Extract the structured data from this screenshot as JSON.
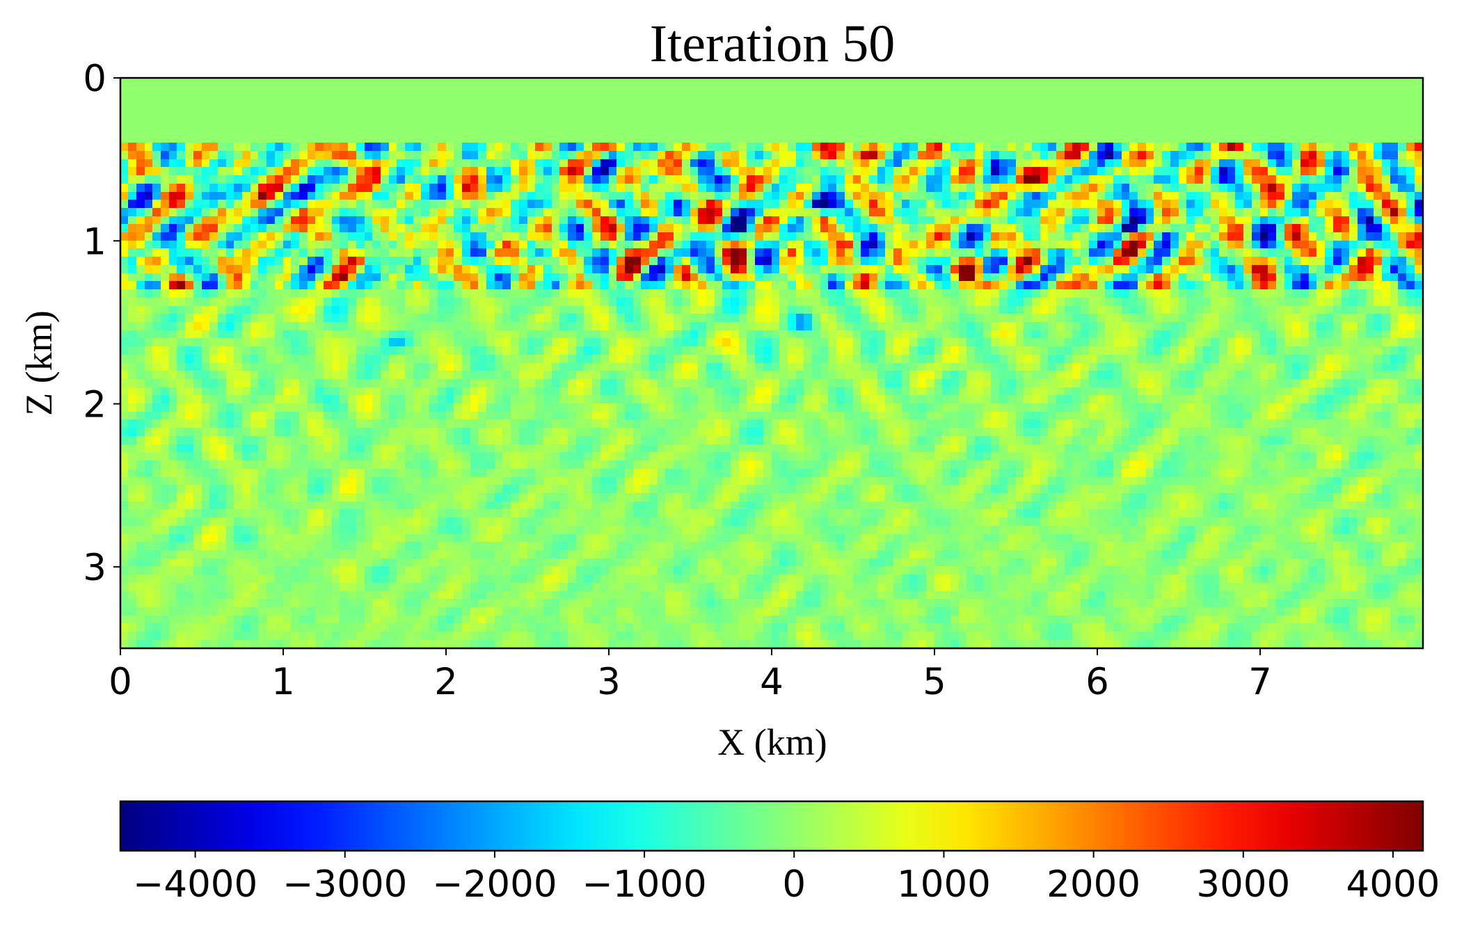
{
  "chart_data": {
    "type": "heatmap",
    "title": "Iteration 50",
    "xlabel": "X (km)",
    "ylabel": "Z (km)",
    "xlim": [
      0,
      8
    ],
    "ylim": [
      3.5,
      0
    ],
    "xticks": [
      {
        "value": 0,
        "label": "0"
      },
      {
        "value": 1,
        "label": "1"
      },
      {
        "value": 2,
        "label": "2"
      },
      {
        "value": 3,
        "label": "3"
      },
      {
        "value": 4,
        "label": "4"
      },
      {
        "value": 5,
        "label": "5"
      },
      {
        "value": 6,
        "label": "6"
      },
      {
        "value": 7,
        "label": "7"
      }
    ],
    "yticks": [
      {
        "value": 0,
        "label": "0"
      },
      {
        "value": 1,
        "label": "1"
      },
      {
        "value": 2,
        "label": "2"
      },
      {
        "value": 3,
        "label": "3"
      }
    ],
    "colormap": "jet",
    "colorbar": {
      "orientation": "horizontal",
      "placement": "bottom",
      "vmin": -4500,
      "vmax": 4200,
      "ticks": [
        {
          "value": -4000,
          "label": "−4000"
        },
        {
          "value": -3000,
          "label": "−3000"
        },
        {
          "value": -2000,
          "label": "−2000"
        },
        {
          "value": -1000,
          "label": "−1000"
        },
        {
          "value": 0,
          "label": "0"
        },
        {
          "value": 1000,
          "label": "1000"
        },
        {
          "value": 2000,
          "label": "2000"
        },
        {
          "value": 3000,
          "label": "3000"
        },
        {
          "value": 4000,
          "label": "4000"
        }
      ]
    },
    "field_description": {
      "water_layer_depth_km": 0.4,
      "water_layer_value": 0,
      "shallow_band_km": [
        0.4,
        1.3
      ],
      "shallow_band_amplitude": 2500,
      "deep_amplitude": 500
    },
    "notable_anomalies": [
      {
        "x": 1.4,
        "z": 0.5,
        "value": 3400
      },
      {
        "x": 1.8,
        "z": 0.4,
        "value": -3600
      },
      {
        "x": 3.8,
        "z": 0.92,
        "value": -4000
      },
      {
        "x": 4.3,
        "z": 0.77,
        "value": -4200
      },
      {
        "x": 4.3,
        "z": 0.45,
        "value": 3500
      },
      {
        "x": 4.6,
        "z": 0.45,
        "value": 4000
      },
      {
        "x": 5.6,
        "z": 0.63,
        "value": 3800
      },
      {
        "x": 6.2,
        "z": 0.92,
        "value": -3800
      },
      {
        "x": 6.4,
        "z": 0.65,
        "value": -2500
      },
      {
        "x": 5.2,
        "z": 1.2,
        "value": 3000
      },
      {
        "x": 4.2,
        "z": 1.5,
        "value": -2000
      },
      {
        "x": 1.7,
        "z": 1.62,
        "value": -1500
      }
    ]
  }
}
